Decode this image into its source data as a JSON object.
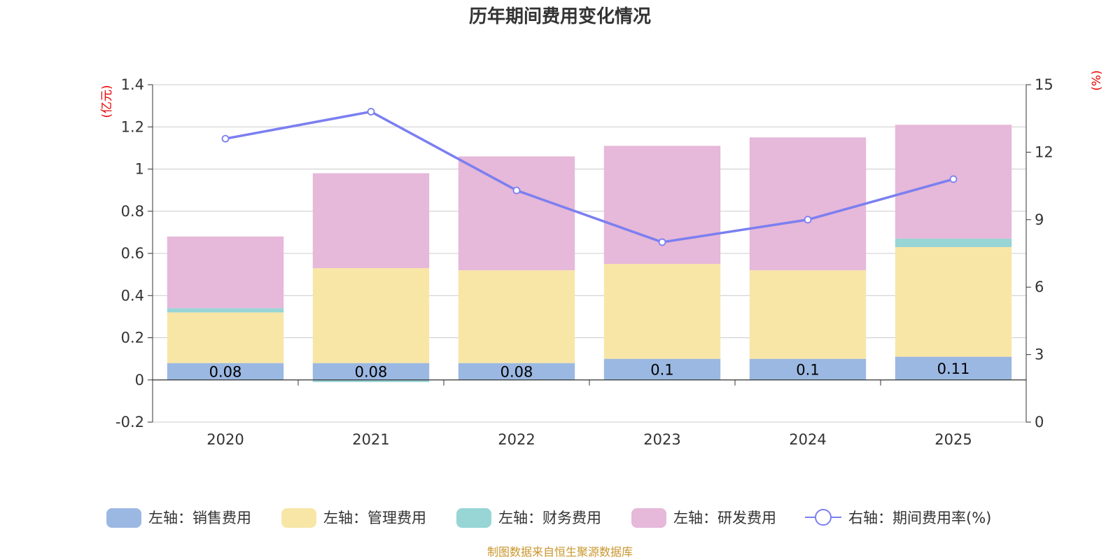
{
  "chart_data": {
    "type": "bar",
    "stacked": true,
    "title": "历年期间费用变化情况",
    "categories": [
      "2020",
      "2021",
      "2022",
      "2023",
      "2024",
      "2025"
    ],
    "left_axis": {
      "unit": "(亿元)",
      "ylim": [
        -0.2,
        1.4
      ],
      "ticks": [
        -0.2,
        0,
        0.2,
        0.4,
        0.6,
        0.8,
        1,
        1.2,
        1.4
      ]
    },
    "right_axis": {
      "unit": "(%)",
      "ylim": [
        0,
        15
      ],
      "ticks": [
        0,
        3,
        6,
        9,
        12,
        15
      ]
    },
    "series": [
      {
        "name": "左轴：销售费用",
        "axis": "left",
        "type": "bar",
        "color": "#9bb8e2",
        "values": [
          0.08,
          0.08,
          0.08,
          0.1,
          0.1,
          0.11
        ],
        "labels": [
          "0.08",
          "0.08",
          "0.08",
          "0.1",
          "0.1",
          "0.11"
        ]
      },
      {
        "name": "左轴：管理费用",
        "axis": "left",
        "type": "bar",
        "color": "#f8e6a7",
        "values": [
          0.24,
          0.45,
          0.44,
          0.45,
          0.42,
          0.52
        ]
      },
      {
        "name": "左轴：财务费用",
        "axis": "left",
        "type": "bar",
        "color": "#98d5d5",
        "values": [
          0.02,
          -0.01,
          0.0,
          0.0,
          0.0,
          0.04
        ]
      },
      {
        "name": "左轴：研发费用",
        "axis": "left",
        "type": "bar",
        "color": "#e6b8d9",
        "values": [
          0.34,
          0.45,
          0.54,
          0.56,
          0.63,
          0.54
        ]
      },
      {
        "name": "右轴：期间费用率(%)",
        "axis": "right",
        "type": "line",
        "color": "#7b7ff0",
        "values": [
          12.6,
          13.8,
          10.3,
          8.0,
          9.0,
          10.8
        ]
      }
    ],
    "source": "制图数据来自恒生聚源数据库"
  }
}
